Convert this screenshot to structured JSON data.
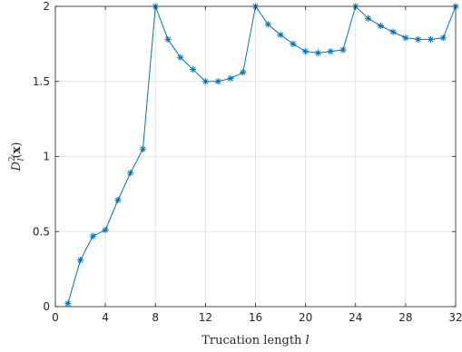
{
  "chart_data": {
    "type": "line",
    "xlabel": "Trucation length l",
    "ylabel": "D_l^2(x)",
    "xlim": [
      0,
      32
    ],
    "ylim": [
      0,
      2
    ],
    "xticks": [
      0,
      4,
      8,
      12,
      16,
      20,
      24,
      28,
      32
    ],
    "yticks": [
      0,
      0.5,
      1,
      1.5,
      2
    ],
    "ytick_labels": [
      "0",
      "0.5",
      "1",
      "1.5",
      "2"
    ],
    "grid": true,
    "marker": "asterisk",
    "color": "#0072bd",
    "x": [
      1,
      2,
      3,
      4,
      5,
      6,
      7,
      8,
      9,
      10,
      11,
      12,
      13,
      14,
      15,
      16,
      17,
      18,
      19,
      20,
      21,
      22,
      23,
      24,
      25,
      26,
      27,
      28,
      29,
      30,
      31,
      32
    ],
    "y": [
      0.02,
      0.31,
      0.47,
      0.51,
      0.71,
      0.89,
      1.05,
      2.0,
      1.78,
      1.66,
      1.58,
      1.5,
      1.5,
      1.52,
      1.56,
      2.0,
      1.88,
      1.81,
      1.75,
      1.7,
      1.69,
      1.7,
      1.71,
      2.0,
      1.92,
      1.87,
      1.83,
      1.79,
      1.78,
      1.78,
      1.79,
      2.0
    ]
  }
}
